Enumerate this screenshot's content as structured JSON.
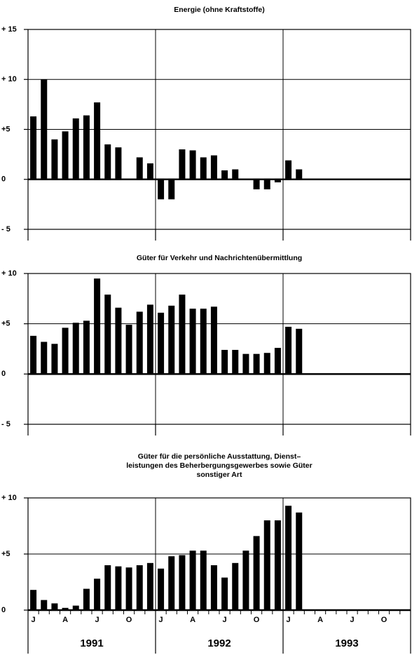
{
  "chart_data": [
    {
      "type": "bar",
      "title_lines": [
        "Energie (ohne Kraftstoffe)"
      ],
      "color": "#000000",
      "values": [
        6.3,
        10,
        4,
        4.8,
        6.1,
        6.4,
        7.7,
        3.5,
        3.2,
        0,
        2.2,
        1.6,
        -2,
        -2,
        3,
        2.9,
        2.2,
        2.4,
        0.9,
        1,
        0,
        -1,
        -1,
        -0.3,
        1.9,
        1,
        null,
        null,
        null,
        null,
        null,
        null,
        null,
        null,
        null,
        null
      ],
      "ylim": [
        -5,
        15
      ],
      "yticks": [
        {
          "value": 15,
          "label": "+ 15"
        },
        {
          "value": 10,
          "label": "+ 10"
        },
        {
          "value": 5,
          "label": "+5"
        },
        0,
        {
          "value": -5,
          "label": "- 5"
        }
      ],
      "grid": true
    },
    {
      "type": "bar",
      "title_lines": [
        "Güter für Verkehr und Nachrichtenübermittlung"
      ],
      "color": "#000000",
      "values": [
        3.8,
        3.2,
        3,
        4.6,
        5.1,
        5.3,
        9.5,
        7.9,
        6.6,
        4.9,
        6.2,
        6.9,
        6.1,
        6.8,
        7.9,
        6.5,
        6.5,
        6.7,
        2.4,
        2.4,
        2,
        2,
        2.1,
        2.6,
        4.7,
        4.5,
        null,
        null,
        null,
        null,
        null,
        null,
        null,
        null,
        null,
        null
      ],
      "ylim": [
        -5,
        10
      ],
      "yticks": [
        {
          "value": 10,
          "label": "+ 10"
        },
        {
          "value": 5,
          "label": "+5"
        },
        0,
        {
          "value": -5,
          "label": "- 5"
        }
      ],
      "grid": true
    },
    {
      "type": "bar",
      "title_lines": [
        "Güter für die persönliche Ausstattung, Dienst–",
        "leistungen des Beherbergungsgewerbes sowie Güter",
        "sonstiger Art"
      ],
      "color": "#000000",
      "values": [
        1.8,
        0.9,
        0.6,
        0.2,
        0.4,
        1.9,
        2.8,
        4,
        3.9,
        3.8,
        4,
        4.2,
        3.7,
        4.8,
        4.9,
        5.3,
        5.3,
        4,
        2.9,
        4.2,
        5.3,
        6.6,
        8,
        8,
        9.3,
        8.7,
        null,
        null,
        null,
        null,
        null,
        null,
        null,
        null,
        null,
        null
      ],
      "ylim": [
        0,
        10
      ],
      "yticks": [
        {
          "value": 10,
          "label": "+ 10"
        },
        {
          "value": 5,
          "label": "+5"
        },
        0
      ],
      "grid": true,
      "categories": [
        "J",
        null,
        null,
        "A",
        null,
        null,
        "J",
        null,
        null,
        "O",
        null,
        null,
        "J",
        null,
        null,
        "A",
        null,
        null,
        "J",
        null,
        null,
        "O",
        null,
        null,
        "J",
        null,
        null,
        "A",
        null,
        null,
        "J",
        null,
        null,
        "O",
        null,
        null
      ],
      "year_labels": [
        "1991",
        "1992",
        "1993"
      ]
    }
  ]
}
